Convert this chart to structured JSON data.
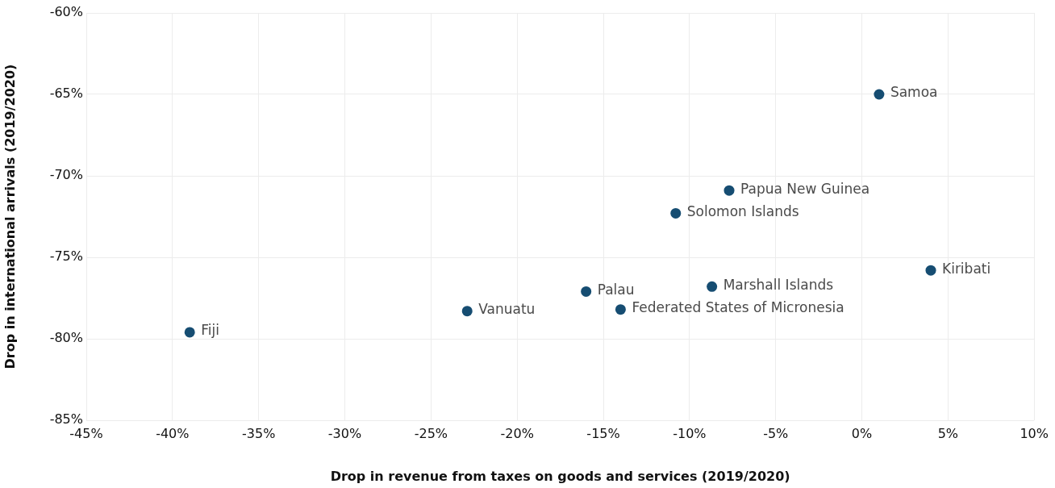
{
  "chart_data": {
    "type": "scatter",
    "xlabel": "Drop in revenue from taxes on goods and services (2019/2020)",
    "ylabel": "Drop in international arrivals (2019/2020)",
    "series": [
      {
        "color": "#164d72",
        "x": [
          -39.0,
          -22.9,
          -16.0,
          -14.0,
          -8.7,
          -10.8,
          -7.7,
          1.0,
          4.0
        ],
        "values": [
          -79.6,
          -78.3,
          -77.1,
          -78.2,
          -76.8,
          -72.3,
          -70.9,
          -65.0,
          -75.8
        ]
      }
    ],
    "xlim": [
      -45,
      10
    ],
    "xticks": [
      {
        "value": -45,
        "label": "-45%"
      },
      {
        "value": -40,
        "label": "-40%"
      },
      {
        "value": -35,
        "label": "-35%"
      },
      {
        "value": -30,
        "label": "-30%"
      },
      {
        "value": -25,
        "label": "-25%"
      },
      {
        "value": -20,
        "label": "-20%"
      },
      {
        "value": -15,
        "label": "-15%"
      },
      {
        "value": -10,
        "label": "-10%"
      },
      {
        "value": -5,
        "label": "-5%"
      },
      {
        "value": 0,
        "label": "0%"
      },
      {
        "value": 5,
        "label": "5%"
      },
      {
        "value": 10,
        "label": "10%"
      }
    ],
    "ylim": [
      -85,
      -60
    ],
    "yticks": [
      {
        "value": -85,
        "label": "-85%"
      },
      {
        "value": -80,
        "label": "-80%"
      },
      {
        "value": -75,
        "label": "-75%"
      },
      {
        "value": -70,
        "label": "-70%"
      },
      {
        "value": -65,
        "label": "-65%"
      },
      {
        "value": -60,
        "label": "-60%"
      }
    ],
    "annotations": [
      {
        "text": "Fiji",
        "x": -39.0,
        "y": -79.6
      },
      {
        "text": "Vanuatu",
        "x": -22.9,
        "y": -78.3
      },
      {
        "text": "Palau",
        "x": -16.0,
        "y": -77.1
      },
      {
        "text": "Federated States of Micronesia",
        "x": -14.0,
        "y": -78.2
      },
      {
        "text": "Marshall Islands",
        "x": -8.7,
        "y": -76.8
      },
      {
        "text": "Solomon Islands",
        "x": -10.8,
        "y": -72.3
      },
      {
        "text": "Papua New Guinea",
        "x": -7.7,
        "y": -70.9
      },
      {
        "text": "Samoa",
        "x": 1.0,
        "y": -65.0
      },
      {
        "text": "Kiribati",
        "x": 4.0,
        "y": -75.8
      }
    ],
    "grid": true,
    "marker": "circle",
    "legend": false
  }
}
